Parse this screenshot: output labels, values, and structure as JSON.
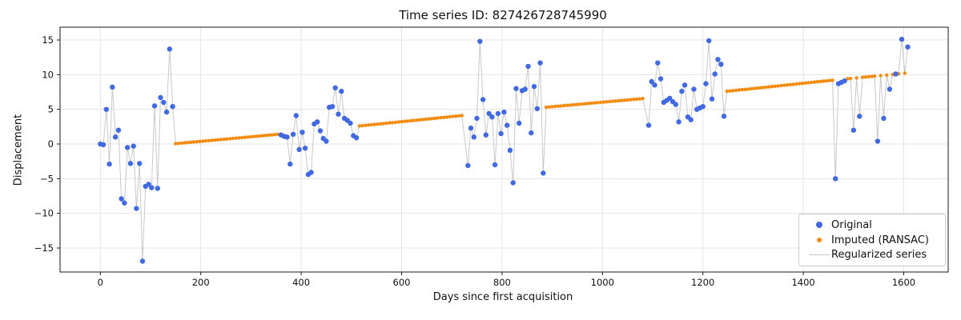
{
  "chart_data": {
    "type": "scatter",
    "title": "Time series ID: 827426728745990",
    "xlabel": "Days since first acquisition",
    "ylabel": "Displacement",
    "xlim": [
      -80,
      1688
    ],
    "ylim": [
      -18.5,
      16.7
    ],
    "xticks": [
      0,
      200,
      400,
      600,
      800,
      1000,
      1200,
      1400,
      1600
    ],
    "yticks": [
      -15,
      -10,
      -5,
      0,
      5,
      10,
      15
    ],
    "grid": true,
    "legend_position": "lower right",
    "colors": {
      "original": "#4169e1",
      "imputed": "#f28b0e",
      "regularized": "#c9c9c9",
      "grid": "#e4e4e4",
      "spine": "#1a1a1a",
      "text": "#111111"
    },
    "series": [
      {
        "name": "Original",
        "type": "scatter",
        "color": "#4169e1",
        "points": [
          [
            0,
            0.0
          ],
          [
            6,
            -0.1
          ],
          [
            12,
            5.0
          ],
          [
            18,
            -2.9
          ],
          [
            24,
            8.2
          ],
          [
            30,
            1.0
          ],
          [
            36,
            2.0
          ],
          [
            42,
            -7.9
          ],
          [
            48,
            -8.5
          ],
          [
            54,
            -0.5
          ],
          [
            60,
            -2.8
          ],
          [
            66,
            -0.3
          ],
          [
            72,
            -9.3
          ],
          [
            78,
            -2.8
          ],
          [
            84,
            -16.9
          ],
          [
            90,
            -6.1
          ],
          [
            96,
            -5.8
          ],
          [
            102,
            -6.3
          ],
          [
            108,
            5.5
          ],
          [
            114,
            -6.4
          ],
          [
            120,
            6.7
          ],
          [
            126,
            6.0
          ],
          [
            132,
            4.6
          ],
          [
            138,
            13.7
          ],
          [
            144,
            5.4
          ],
          [
            360,
            1.3
          ],
          [
            366,
            1.1
          ],
          [
            372,
            1.0
          ],
          [
            378,
            -2.9
          ],
          [
            384,
            1.4
          ],
          [
            390,
            4.1
          ],
          [
            396,
            -0.8
          ],
          [
            402,
            1.7
          ],
          [
            408,
            -0.6
          ],
          [
            414,
            -4.4
          ],
          [
            420,
            -4.1
          ],
          [
            426,
            2.9
          ],
          [
            432,
            3.2
          ],
          [
            438,
            1.9
          ],
          [
            444,
            0.8
          ],
          [
            450,
            0.4
          ],
          [
            456,
            5.3
          ],
          [
            462,
            5.4
          ],
          [
            468,
            8.1
          ],
          [
            474,
            4.3
          ],
          [
            480,
            7.6
          ],
          [
            486,
            3.7
          ],
          [
            492,
            3.4
          ],
          [
            498,
            3.0
          ],
          [
            504,
            1.2
          ],
          [
            510,
            0.9
          ],
          [
            732,
            -3.1
          ],
          [
            738,
            2.3
          ],
          [
            744,
            1.0
          ],
          [
            750,
            3.7
          ],
          [
            756,
            14.8
          ],
          [
            762,
            6.4
          ],
          [
            768,
            1.3
          ],
          [
            774,
            4.4
          ],
          [
            780,
            3.9
          ],
          [
            786,
            -3.0
          ],
          [
            792,
            4.4
          ],
          [
            798,
            1.5
          ],
          [
            804,
            4.6
          ],
          [
            810,
            2.7
          ],
          [
            816,
            -0.9
          ],
          [
            822,
            -5.6
          ],
          [
            828,
            8.0
          ],
          [
            834,
            3.0
          ],
          [
            840,
            7.7
          ],
          [
            846,
            7.9
          ],
          [
            852,
            11.2
          ],
          [
            858,
            1.6
          ],
          [
            864,
            8.3
          ],
          [
            870,
            5.1
          ],
          [
            876,
            11.7
          ],
          [
            882,
            -4.2
          ],
          [
            1092,
            2.7
          ],
          [
            1098,
            9.0
          ],
          [
            1104,
            8.5
          ],
          [
            1110,
            11.7
          ],
          [
            1116,
            9.4
          ],
          [
            1122,
            6.0
          ],
          [
            1128,
            6.3
          ],
          [
            1134,
            6.6
          ],
          [
            1140,
            6.1
          ],
          [
            1146,
            5.7
          ],
          [
            1152,
            3.2
          ],
          [
            1158,
            7.6
          ],
          [
            1164,
            8.5
          ],
          [
            1170,
            3.9
          ],
          [
            1176,
            3.5
          ],
          [
            1182,
            7.9
          ],
          [
            1188,
            5.0
          ],
          [
            1194,
            5.2
          ],
          [
            1200,
            5.4
          ],
          [
            1206,
            8.7
          ],
          [
            1212,
            14.9
          ],
          [
            1218,
            6.5
          ],
          [
            1224,
            10.1
          ],
          [
            1230,
            12.2
          ],
          [
            1236,
            11.5
          ],
          [
            1242,
            4.0
          ],
          [
            1464,
            -5.0
          ],
          [
            1470,
            8.7
          ],
          [
            1476,
            8.9
          ],
          [
            1482,
            9.1
          ],
          [
            1500,
            2.0
          ],
          [
            1512,
            4.0
          ],
          [
            1548,
            0.4
          ],
          [
            1560,
            3.7
          ],
          [
            1572,
            7.9
          ],
          [
            1584,
            10.1
          ],
          [
            1596,
            15.1
          ],
          [
            1608,
            14.0
          ]
        ]
      },
      {
        "name": "Imputed (RANSAC)",
        "type": "scatter",
        "color": "#f28b0e",
        "step_days": 6,
        "segments": [
          {
            "start_day": 150,
            "end_day": 354,
            "start_value": 0.05,
            "end_value": 1.4
          },
          {
            "start_day": 516,
            "end_day": 720,
            "start_value": 2.6,
            "end_value": 4.1
          },
          {
            "start_day": 888,
            "end_day": 1080,
            "start_value": 5.3,
            "end_value": 6.55
          },
          {
            "start_day": 1248,
            "end_day": 1458,
            "start_value": 7.6,
            "end_value": 9.2
          }
        ],
        "extra_points": [
          [
            1488,
            9.41
          ],
          [
            1494,
            9.45
          ],
          [
            1506,
            9.53
          ],
          [
            1518,
            9.62
          ],
          [
            1524,
            9.66
          ],
          [
            1530,
            9.7
          ],
          [
            1536,
            9.74
          ],
          [
            1542,
            9.78
          ],
          [
            1554,
            9.87
          ],
          [
            1566,
            9.95
          ],
          [
            1578,
            10.03
          ],
          [
            1590,
            10.12
          ],
          [
            1602,
            10.2
          ]
        ]
      },
      {
        "name": "Regularized series",
        "type": "line",
        "color": "#c9c9c9",
        "composition": "union of Original and Imputed points sorted by day"
      }
    ]
  }
}
